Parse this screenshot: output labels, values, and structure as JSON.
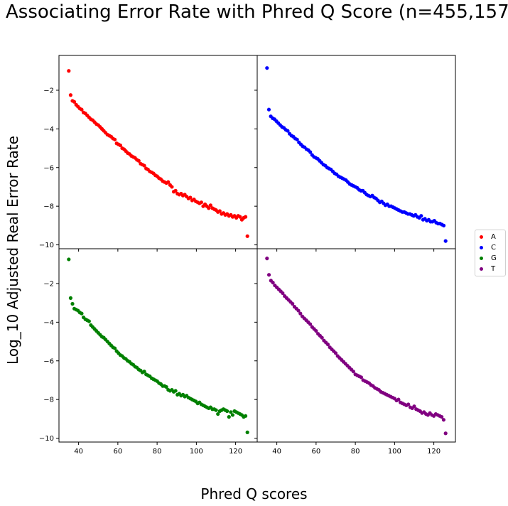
{
  "title": "Associating Error Rate with Phred Q Score (n=455,157)",
  "xlabel": "Phred Q scores",
  "ylabel": "Log_10 Adjusted Real Error Rate",
  "legend": [
    {
      "label": "A",
      "color": "#ff0000"
    },
    {
      "label": "C",
      "color": "#0000ff"
    },
    {
      "label": "G",
      "color": "#008000"
    },
    {
      "label": "T",
      "color": "#800080"
    }
  ],
  "chart_data": {
    "type": "scatter",
    "layout": "2x2 grid, shared axes",
    "xlim": [
      30,
      131
    ],
    "ylim": [
      -10.2,
      -0.2
    ],
    "xticks": [
      40,
      60,
      80,
      100,
      120
    ],
    "yticks": [
      -2,
      -4,
      -6,
      -8,
      -10
    ],
    "grid": false,
    "legend_position": "right",
    "x_range": [
      35,
      126
    ],
    "series": [
      {
        "name": "A",
        "color": "#ff0000",
        "y": [
          -1.0,
          -2.25,
          -2.55,
          -2.6,
          -2.75,
          -2.85,
          -2.95,
          -3.0,
          -3.15,
          -3.2,
          -3.3,
          -3.4,
          -3.5,
          -3.55,
          -3.65,
          -3.75,
          -3.8,
          -3.9,
          -4.0,
          -4.1,
          -4.2,
          -4.3,
          -4.35,
          -4.4,
          -4.5,
          -4.55,
          -4.75,
          -4.8,
          -4.85,
          -5.0,
          -5.05,
          -5.15,
          -5.25,
          -5.3,
          -5.4,
          -5.45,
          -5.5,
          -5.6,
          -5.65,
          -5.8,
          -5.85,
          -5.9,
          -6.05,
          -6.1,
          -6.2,
          -6.25,
          -6.3,
          -6.4,
          -6.45,
          -6.55,
          -6.6,
          -6.7,
          -6.75,
          -6.8,
          -6.75,
          -6.9,
          -7.0,
          -7.25,
          -7.2,
          -7.35,
          -7.4,
          -7.35,
          -7.45,
          -7.4,
          -7.5,
          -7.6,
          -7.55,
          -7.7,
          -7.65,
          -7.75,
          -7.8,
          -7.85,
          -7.8,
          -8.0,
          -7.9,
          -8.0,
          -8.1,
          -7.95,
          -8.1,
          -8.15,
          -8.2,
          -8.3,
          -8.25,
          -8.4,
          -8.35,
          -8.45,
          -8.4,
          -8.5,
          -8.45,
          -8.55,
          -8.5,
          -8.6,
          -8.5,
          -8.55,
          -8.7,
          -8.6,
          -8.55,
          -9.55
        ]
      },
      {
        "name": "C",
        "color": "#0000ff",
        "y": [
          -0.85,
          -3.0,
          -3.35,
          -3.45,
          -3.5,
          -3.6,
          -3.7,
          -3.8,
          -3.9,
          -3.95,
          -4.05,
          -4.1,
          -4.25,
          -4.35,
          -4.4,
          -4.5,
          -4.55,
          -4.7,
          -4.8,
          -4.9,
          -4.95,
          -5.05,
          -5.1,
          -5.2,
          -5.35,
          -5.45,
          -5.5,
          -5.55,
          -5.65,
          -5.75,
          -5.85,
          -5.9,
          -6.0,
          -6.05,
          -6.1,
          -6.2,
          -6.3,
          -6.35,
          -6.45,
          -6.5,
          -6.55,
          -6.6,
          -6.65,
          -6.75,
          -6.85,
          -6.9,
          -6.95,
          -7.0,
          -7.05,
          -7.15,
          -7.2,
          -7.2,
          -7.3,
          -7.4,
          -7.45,
          -7.5,
          -7.45,
          -7.55,
          -7.6,
          -7.7,
          -7.8,
          -7.75,
          -7.85,
          -7.95,
          -7.9,
          -8.0,
          -8.0,
          -8.05,
          -8.1,
          -8.15,
          -8.2,
          -8.25,
          -8.3,
          -8.3,
          -8.35,
          -8.4,
          -8.4,
          -8.45,
          -8.5,
          -8.45,
          -8.55,
          -8.6,
          -8.5,
          -8.7,
          -8.65,
          -8.75,
          -8.7,
          -8.8,
          -8.8,
          -8.75,
          -8.85,
          -8.9,
          -8.9,
          -8.95,
          -9.0,
          -9.8
        ]
      },
      {
        "name": "G",
        "color": "#008000",
        "y": [
          -0.75,
          -2.75,
          -3.05,
          -3.3,
          -3.35,
          -3.4,
          -3.5,
          -3.55,
          -3.75,
          -3.85,
          -3.9,
          -3.95,
          -4.15,
          -4.25,
          -4.35,
          -4.45,
          -4.55,
          -4.65,
          -4.75,
          -4.8,
          -4.9,
          -5.0,
          -5.1,
          -5.2,
          -5.3,
          -5.35,
          -5.5,
          -5.6,
          -5.7,
          -5.75,
          -5.85,
          -5.9,
          -6.0,
          -6.05,
          -6.15,
          -6.2,
          -6.3,
          -6.35,
          -6.45,
          -6.5,
          -6.6,
          -6.55,
          -6.7,
          -6.75,
          -6.8,
          -6.9,
          -6.95,
          -7.0,
          -7.05,
          -7.15,
          -7.2,
          -7.3,
          -7.3,
          -7.35,
          -7.5,
          -7.55,
          -7.5,
          -7.6,
          -7.55,
          -7.75,
          -7.7,
          -7.8,
          -7.75,
          -7.85,
          -7.8,
          -7.9,
          -7.95,
          -8.0,
          -8.05,
          -8.1,
          -8.2,
          -8.15,
          -8.25,
          -8.3,
          -8.35,
          -8.4,
          -8.45,
          -8.4,
          -8.5,
          -8.5,
          -8.55,
          -8.75,
          -8.6,
          -8.55,
          -8.5,
          -8.55,
          -8.6,
          -8.9,
          -8.65,
          -8.8,
          -8.6,
          -8.65,
          -8.7,
          -8.75,
          -8.8,
          -8.9,
          -8.85,
          -9.7
        ]
      },
      {
        "name": "T",
        "color": "#800080",
        "y": [
          -0.7,
          -1.55,
          -1.85,
          -1.95,
          -2.1,
          -2.2,
          -2.3,
          -2.4,
          -2.5,
          -2.65,
          -2.75,
          -2.85,
          -2.95,
          -3.05,
          -3.2,
          -3.3,
          -3.4,
          -3.55,
          -3.7,
          -3.8,
          -3.9,
          -4.0,
          -4.1,
          -4.25,
          -4.35,
          -4.45,
          -4.6,
          -4.7,
          -4.8,
          -4.95,
          -5.05,
          -5.15,
          -5.3,
          -5.4,
          -5.5,
          -5.6,
          -5.75,
          -5.85,
          -5.95,
          -6.05,
          -6.15,
          -6.25,
          -6.35,
          -6.45,
          -6.55,
          -6.7,
          -6.75,
          -6.8,
          -6.85,
          -7.0,
          -7.05,
          -7.1,
          -7.15,
          -7.25,
          -7.3,
          -7.4,
          -7.45,
          -7.5,
          -7.6,
          -7.65,
          -7.7,
          -7.75,
          -7.8,
          -7.85,
          -7.9,
          -7.95,
          -8.05,
          -8.0,
          -8.15,
          -8.2,
          -8.25,
          -8.3,
          -8.25,
          -8.4,
          -8.45,
          -8.35,
          -8.5,
          -8.55,
          -8.6,
          -8.7,
          -8.65,
          -8.75,
          -8.8,
          -8.7,
          -8.8,
          -8.85,
          -8.75,
          -8.8,
          -8.85,
          -8.9,
          -9.05,
          -9.75
        ]
      }
    ]
  }
}
